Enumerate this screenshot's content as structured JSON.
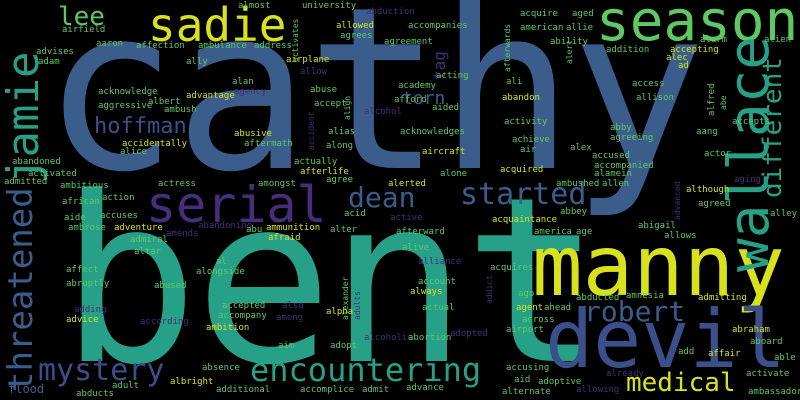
{
  "palette": {
    "background": "#000000",
    "blue": "#3b5d8c",
    "teal": "#26a087",
    "green": "#5ec962",
    "yellow": "#d8e21c",
    "purple": "#472d7b",
    "indigo": "#3b4f8a"
  },
  "words": [
    {
      "t": "cathy"
    },
    {
      "t": "bent"
    },
    {
      "t": "manny"
    },
    {
      "t": "devil"
    },
    {
      "t": "sadie"
    },
    {
      "t": "season"
    },
    {
      "t": "serial"
    },
    {
      "t": "wallace"
    },
    {
      "t": "jamie"
    },
    {
      "t": "threatened"
    },
    {
      "t": "encountering"
    },
    {
      "t": "mystery"
    },
    {
      "t": "medical"
    },
    {
      "t": "robert"
    },
    {
      "t": "dean"
    },
    {
      "t": "started"
    },
    {
      "t": "different"
    },
    {
      "t": "hoffman"
    },
    {
      "t": "lee"
    },
    {
      "t": "torn"
    },
    {
      "t": "tag"
    },
    {
      "t": "almost"
    },
    {
      "t": "university"
    },
    {
      "t": "abduction"
    },
    {
      "t": "afterwards"
    },
    {
      "t": "acquire"
    },
    {
      "t": "aged"
    },
    {
      "t": "allowed"
    },
    {
      "t": "accompanies"
    },
    {
      "t": "american"
    },
    {
      "t": "allie"
    },
    {
      "t": "airfield"
    },
    {
      "t": "activates"
    },
    {
      "t": "agrees"
    },
    {
      "t": "agreement"
    },
    {
      "t": "ability"
    },
    {
      "t": "addition"
    },
    {
      "t": "alarm"
    },
    {
      "t": "alien"
    },
    {
      "t": "advises"
    },
    {
      "t": "aaron"
    },
    {
      "t": "affection"
    },
    {
      "t": "ambulance"
    },
    {
      "t": "address"
    },
    {
      "t": "accepting"
    },
    {
      "t": "adam"
    },
    {
      "t": "airplane"
    },
    {
      "t": "allow"
    },
    {
      "t": "alec"
    },
    {
      "t": "ad"
    },
    {
      "t": "acting"
    },
    {
      "t": "ali"
    },
    {
      "t": "ally"
    },
    {
      "t": "alan"
    },
    {
      "t": "agency"
    },
    {
      "t": "academy"
    },
    {
      "t": "access"
    },
    {
      "t": "acknowledge"
    },
    {
      "t": "abuse"
    },
    {
      "t": "abandon"
    },
    {
      "t": "allison"
    },
    {
      "t": "aggressive"
    },
    {
      "t": "albert"
    },
    {
      "t": "advantage"
    },
    {
      "t": "accept"
    },
    {
      "t": "afford"
    },
    {
      "t": "aided"
    },
    {
      "t": "alfred"
    },
    {
      "t": "ambush"
    },
    {
      "t": "alcohol"
    },
    {
      "t": "activity"
    },
    {
      "t": "accepts"
    },
    {
      "t": "abby"
    },
    {
      "t": "aang"
    },
    {
      "t": "abusive"
    },
    {
      "t": "alias"
    },
    {
      "t": "acknowledges"
    },
    {
      "t": "agreeing"
    },
    {
      "t": "accidentally"
    },
    {
      "t": "aftermath"
    },
    {
      "t": "achieve"
    },
    {
      "t": "alex"
    },
    {
      "t": "actor"
    },
    {
      "t": "alice"
    },
    {
      "t": "along"
    },
    {
      "t": "air"
    },
    {
      "t": "accused"
    },
    {
      "t": "abandoned"
    },
    {
      "t": "actually"
    },
    {
      "t": "aircraft"
    },
    {
      "t": "accompanied"
    },
    {
      "t": "alamein"
    },
    {
      "t": "activated"
    },
    {
      "t": "afterlife"
    },
    {
      "t": "alone"
    },
    {
      "t": "acquired"
    },
    {
      "t": "although"
    },
    {
      "t": "admitted"
    },
    {
      "t": "ambitious"
    },
    {
      "t": "amongst"
    },
    {
      "t": "agree"
    },
    {
      "t": "alerted"
    },
    {
      "t": "ambushed"
    },
    {
      "t": "allen"
    },
    {
      "t": "agreed"
    },
    {
      "t": "action"
    },
    {
      "t": "african"
    },
    {
      "t": "actress"
    },
    {
      "t": "advanced"
    },
    {
      "t": "alley"
    },
    {
      "t": "aide"
    },
    {
      "t": "accuses"
    },
    {
      "t": "acid"
    },
    {
      "t": "active"
    },
    {
      "t": "abbey"
    },
    {
      "t": "abigail"
    },
    {
      "t": "ambrose"
    },
    {
      "t": "adventure"
    },
    {
      "t": "amends"
    },
    {
      "t": "abandoning"
    },
    {
      "t": "abu"
    },
    {
      "t": "ammunition"
    },
    {
      "t": "alter"
    },
    {
      "t": "acquaintance"
    },
    {
      "t": "america"
    },
    {
      "t": "age"
    },
    {
      "t": "allows"
    },
    {
      "t": "admiral"
    },
    {
      "t": "afraid"
    },
    {
      "t": "afterward"
    },
    {
      "t": "altar"
    },
    {
      "t": "alive"
    },
    {
      "t": "alliance"
    },
    {
      "t": "al"
    },
    {
      "t": "affect"
    },
    {
      "t": "alongside"
    },
    {
      "t": "acquires"
    },
    {
      "t": "abruptly"
    },
    {
      "t": "abused"
    },
    {
      "t": "account"
    },
    {
      "t": "always"
    },
    {
      "t": "ago"
    },
    {
      "t": "abducted"
    },
    {
      "t": "amnesia"
    },
    {
      "t": "admitting"
    },
    {
      "t": "accepted"
    },
    {
      "t": "also"
    },
    {
      "t": "agent"
    },
    {
      "t": "ahead"
    },
    {
      "t": "adding"
    },
    {
      "t": "accompany"
    },
    {
      "t": "alpha"
    },
    {
      "t": "actual"
    },
    {
      "t": "abraham"
    },
    {
      "t": "advice"
    },
    {
      "t": "according"
    },
    {
      "t": "ambition"
    },
    {
      "t": "among"
    },
    {
      "t": "across"
    },
    {
      "t": "airport"
    },
    {
      "t": "aboard"
    },
    {
      "t": "adopt"
    },
    {
      "t": "alcoholic"
    },
    {
      "t": "abortion"
    },
    {
      "t": "adopted"
    },
    {
      "t": "aim"
    },
    {
      "t": "add"
    },
    {
      "t": "affair"
    },
    {
      "t": "able"
    },
    {
      "t": "accusing"
    },
    {
      "t": "adoptive"
    },
    {
      "t": "already"
    },
    {
      "t": "absence"
    },
    {
      "t": "activate"
    },
    {
      "t": "albright"
    },
    {
      "t": "aid"
    },
    {
      "t": "flood"
    },
    {
      "t": "adult"
    },
    {
      "t": "additional"
    },
    {
      "t": "accomplice"
    },
    {
      "t": "admit"
    },
    {
      "t": "advance"
    },
    {
      "t": "alternate"
    },
    {
      "t": "allowing"
    },
    {
      "t": "ambassador"
    },
    {
      "t": "abducts"
    },
    {
      "t": "addict"
    },
    {
      "t": "adults"
    },
    {
      "t": "alexander"
    },
    {
      "t": "accident"
    },
    {
      "t": "alert"
    },
    {
      "t": "align"
    },
    {
      "t": "aging"
    },
    {
      "t": "abe"
    }
  ]
}
